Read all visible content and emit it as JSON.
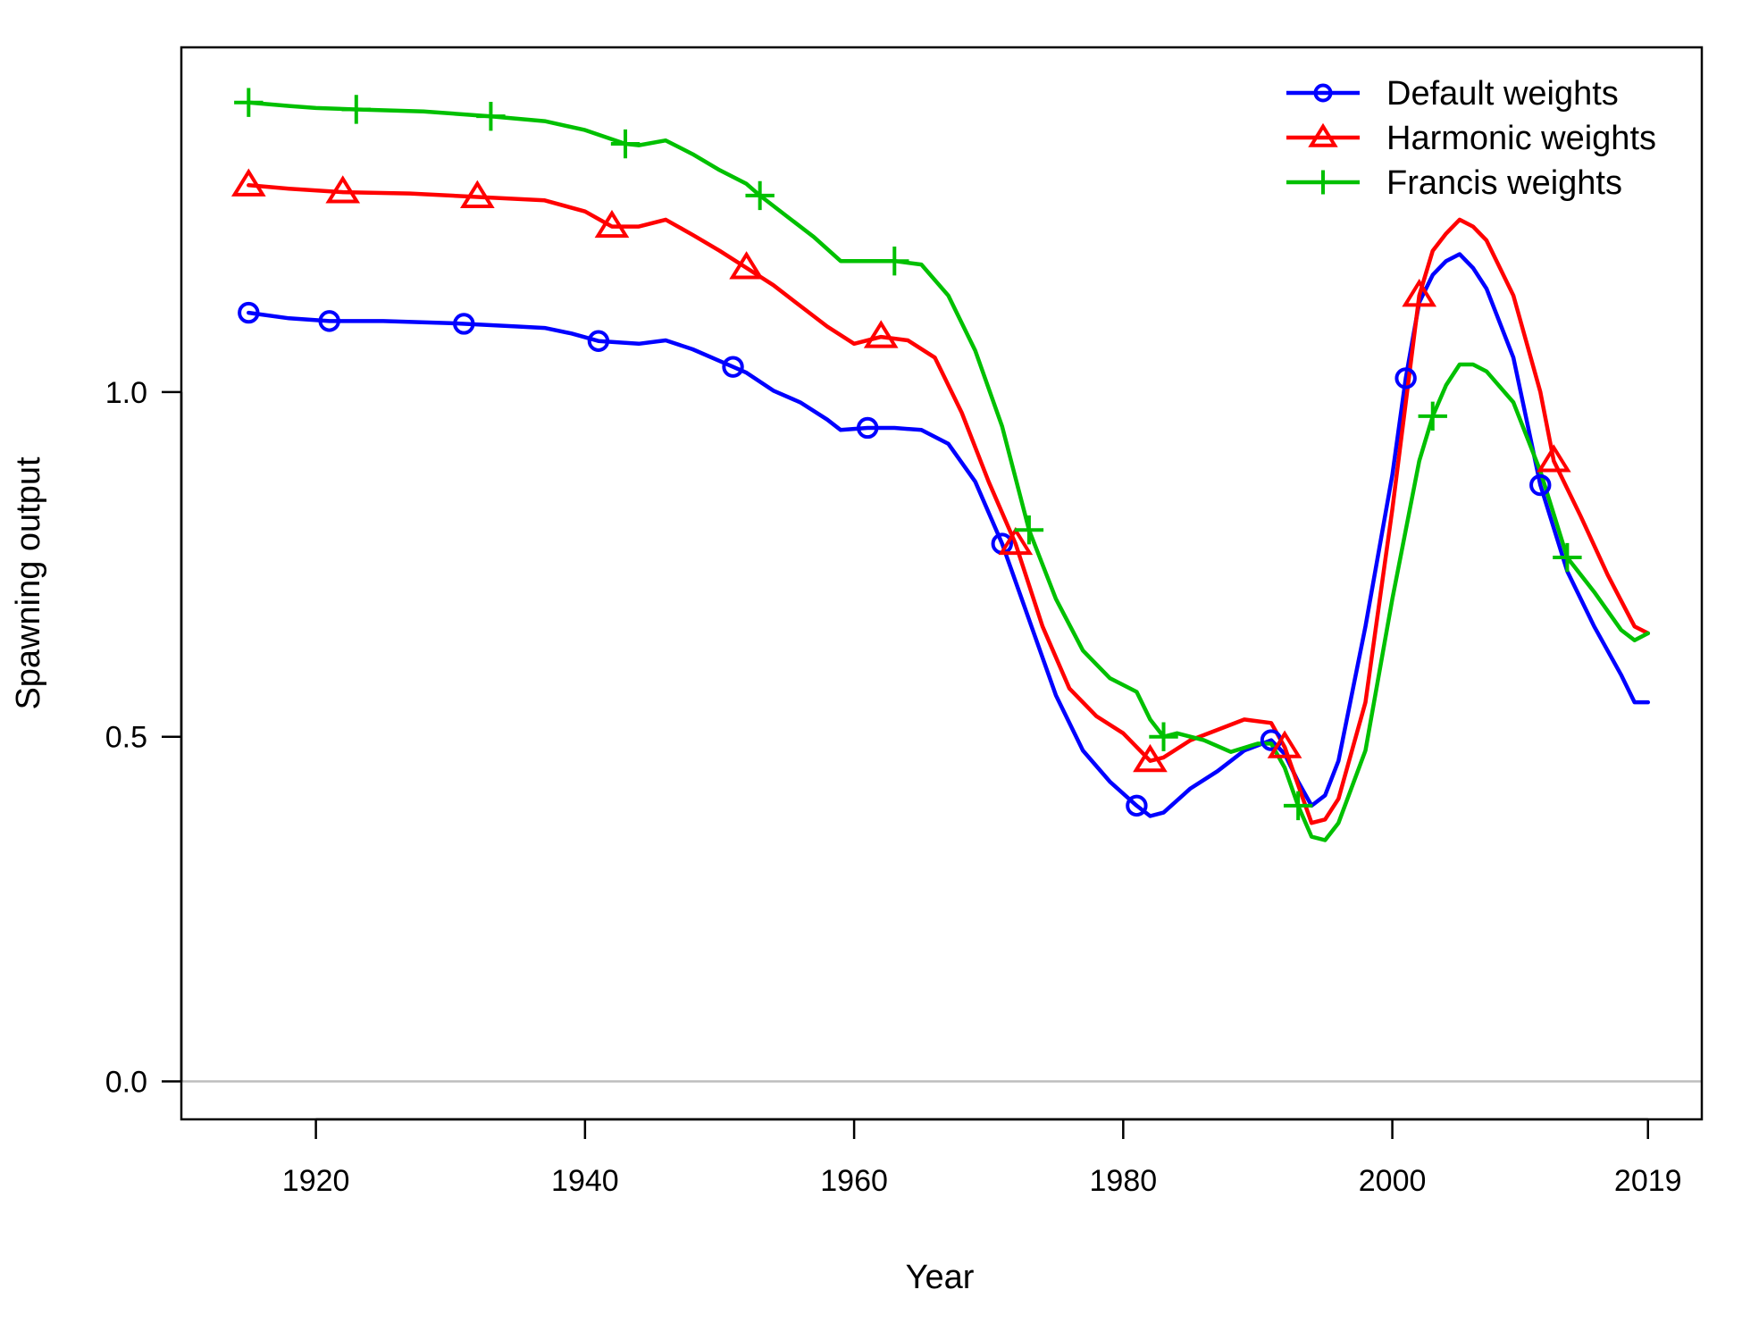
{
  "chart_data": {
    "type": "line",
    "xlabel": "Year",
    "ylabel": "Spawning output",
    "xlim": [
      1910,
      2023
    ],
    "ylim": [
      -0.055,
      1.5
    ],
    "x_ticks": [
      1920,
      1940,
      1960,
      1980,
      2000,
      2019
    ],
    "x_tick_labels": [
      "1920",
      "1940",
      "1960",
      "1980",
      "2000",
      "2019"
    ],
    "y_ticks": [
      0.0,
      0.5,
      1.0
    ],
    "y_tick_labels": [
      "0.0",
      "0.5",
      "1.0"
    ],
    "reference_line_y": 0,
    "grid": false,
    "legend_position": "top-right",
    "series": [
      {
        "name": "Default weights",
        "color": "#0000ff",
        "marker": "circle",
        "marker_x": [
          1915,
          1921,
          1931,
          1941,
          1951,
          1961,
          1971,
          1981,
          1991,
          2001,
          2011
        ],
        "x": [
          1915,
          1918,
          1921,
          1925,
          1930,
          1935,
          1937,
          1939,
          1941,
          1944,
          1946,
          1948,
          1950,
          1952,
          1954,
          1956,
          1958,
          1959,
          1961,
          1963,
          1965,
          1967,
          1969,
          1971,
          1973,
          1975,
          1977,
          1979,
          1981,
          1982,
          1983,
          1985,
          1987,
          1989,
          1991,
          1992,
          1993,
          1994,
          1995,
          1996,
          1998,
          2000,
          2001,
          2002,
          2003,
          2004,
          2005,
          2006,
          2007,
          2009,
          2011,
          2013,
          2015,
          2017,
          2018,
          2019
        ],
        "y": [
          1.115,
          1.107,
          1.103,
          1.103,
          1.1,
          1.095,
          1.093,
          1.085,
          1.074,
          1.07,
          1.075,
          1.062,
          1.045,
          1.028,
          1.002,
          0.985,
          0.96,
          0.945,
          0.948,
          0.948,
          0.945,
          0.925,
          0.87,
          0.78,
          0.67,
          0.56,
          0.48,
          0.435,
          0.4,
          0.385,
          0.39,
          0.425,
          0.45,
          0.48,
          0.495,
          0.475,
          0.435,
          0.4,
          0.415,
          0.465,
          0.66,
          0.88,
          1.02,
          1.13,
          1.17,
          1.19,
          1.2,
          1.18,
          1.15,
          1.05,
          0.865,
          0.74,
          0.66,
          0.59,
          0.55,
          0.55
        ]
      },
      {
        "name": "Harmonic weights",
        "color": "#ff0000",
        "marker": "triangle",
        "marker_x": [
          1915,
          1922,
          1932,
          1942,
          1952,
          1962,
          1972,
          1982,
          1992,
          2002,
          2012
        ],
        "x": [
          1915,
          1918,
          1922,
          1927,
          1932,
          1937,
          1940,
          1942,
          1944,
          1946,
          1948,
          1950,
          1952,
          1954,
          1956,
          1958,
          1960,
          1962,
          1964,
          1966,
          1968,
          1970,
          1972,
          1974,
          1976,
          1978,
          1980,
          1982,
          1983,
          1985,
          1987,
          1989,
          1991,
          1992,
          1993,
          1994,
          1995,
          1996,
          1998,
          2000,
          2002,
          2003,
          2004,
          2005,
          2006,
          2007,
          2009,
          2011,
          2012,
          2014,
          2016,
          2018,
          2019
        ],
        "y": [
          1.3,
          1.295,
          1.29,
          1.288,
          1.283,
          1.278,
          1.262,
          1.24,
          1.24,
          1.25,
          1.228,
          1.205,
          1.18,
          1.155,
          1.125,
          1.095,
          1.07,
          1.08,
          1.075,
          1.05,
          0.97,
          0.87,
          0.78,
          0.66,
          0.57,
          0.53,
          0.505,
          0.465,
          0.47,
          0.495,
          0.51,
          0.525,
          0.52,
          0.485,
          0.43,
          0.375,
          0.38,
          0.41,
          0.55,
          0.83,
          1.14,
          1.205,
          1.23,
          1.25,
          1.24,
          1.22,
          1.14,
          1.0,
          0.9,
          0.82,
          0.735,
          0.66,
          0.65
        ]
      },
      {
        "name": "Francis weights",
        "color": "#00c000",
        "marker": "plus",
        "marker_x": [
          1915,
          1923,
          1933,
          1943,
          1953,
          1963,
          1973,
          1983,
          1993,
          2003,
          2013
        ],
        "x": [
          1915,
          1918,
          1920,
          1923,
          1928,
          1933,
          1937,
          1940,
          1943,
          1944,
          1946,
          1948,
          1950,
          1952,
          1953,
          1955,
          1957,
          1959,
          1961,
          1963,
          1965,
          1967,
          1969,
          1971,
          1973,
          1975,
          1977,
          1979,
          1981,
          1982,
          1983,
          1984,
          1986,
          1988,
          1990,
          1991,
          1992,
          1993,
          1994,
          1995,
          1996,
          1998,
          2000,
          2002,
          2003,
          2004,
          2005,
          2006,
          2007,
          2009,
          2011,
          2013,
          2015,
          2017,
          2018,
          2019
        ],
        "y": [
          1.42,
          1.415,
          1.412,
          1.41,
          1.407,
          1.4,
          1.393,
          1.38,
          1.36,
          1.358,
          1.365,
          1.345,
          1.322,
          1.302,
          1.285,
          1.255,
          1.225,
          1.19,
          1.19,
          1.19,
          1.185,
          1.14,
          1.06,
          0.95,
          0.8,
          0.7,
          0.625,
          0.585,
          0.565,
          0.525,
          0.5,
          0.505,
          0.495,
          0.478,
          0.49,
          0.49,
          0.455,
          0.4,
          0.355,
          0.35,
          0.375,
          0.48,
          0.7,
          0.9,
          0.965,
          1.01,
          1.04,
          1.04,
          1.03,
          0.985,
          0.885,
          0.76,
          0.71,
          0.655,
          0.64,
          0.65
        ]
      }
    ]
  }
}
